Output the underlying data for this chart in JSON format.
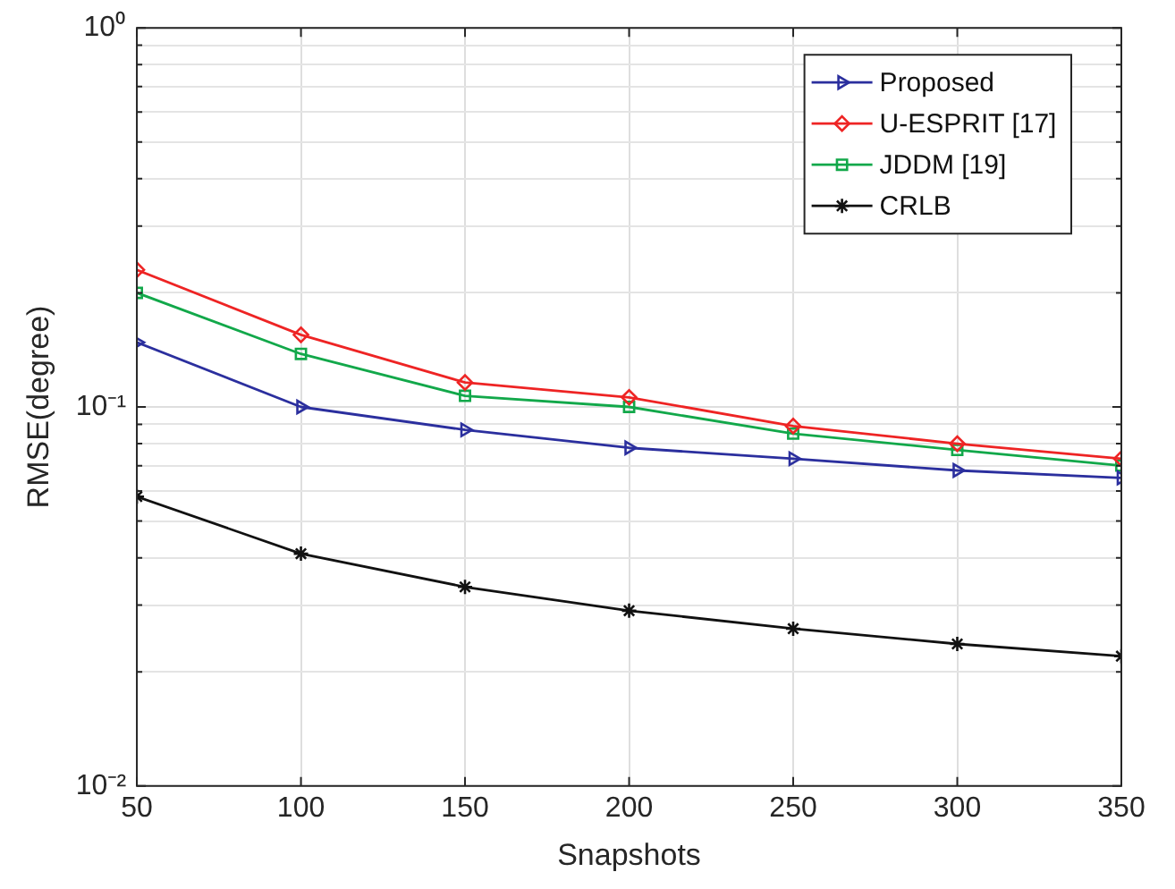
{
  "chart_data": {
    "type": "line",
    "xlabel": "Snapshots",
    "ylabel": "RMSE(degree)",
    "x": [
      50,
      100,
      150,
      200,
      250,
      300,
      350
    ],
    "xlim": [
      50,
      350
    ],
    "xticks": [
      50,
      100,
      150,
      200,
      250,
      300,
      350
    ],
    "log": "y",
    "ylim": [
      0.01,
      1
    ],
    "yticks": [
      {
        "value": 0.01,
        "label": "10⁻²"
      },
      {
        "value": 0.02,
        "label": null
      },
      {
        "value": 0.03,
        "label": null
      },
      {
        "value": 0.04,
        "label": null
      },
      {
        "value": 0.05,
        "label": null
      },
      {
        "value": 0.06,
        "label": null
      },
      {
        "value": 0.07,
        "label": null
      },
      {
        "value": 0.08,
        "label": null
      },
      {
        "value": 0.09,
        "label": null
      },
      {
        "value": 0.1,
        "label": "10⁻¹"
      },
      {
        "value": 0.2,
        "label": null
      },
      {
        "value": 0.3,
        "label": null
      },
      {
        "value": 0.4,
        "label": null
      },
      {
        "value": 0.5,
        "label": null
      },
      {
        "value": 0.6,
        "label": null
      },
      {
        "value": 0.7,
        "label": null
      },
      {
        "value": 0.8,
        "label": null
      },
      {
        "value": 0.9,
        "label": null
      },
      {
        "value": 1,
        "label": "10⁰"
      }
    ],
    "grid": true,
    "legend": "top right",
    "line_style": "solid",
    "series": [
      {
        "name": "Proposed",
        "color": "#2b2f9e",
        "marker": "triangle",
        "values": [
          0.148,
          0.1,
          0.087,
          0.078,
          0.073,
          0.068,
          0.065
        ]
      },
      {
        "name": "U-ESPRIT [17]",
        "color": "#ee2424",
        "marker": "diamond",
        "values": [
          0.23,
          0.155,
          0.116,
          0.106,
          0.089,
          0.08,
          0.073
        ]
      },
      {
        "name": "JDDM [19]",
        "color": "#12a84a",
        "marker": "square",
        "values": [
          0.2,
          0.138,
          0.107,
          0.1,
          0.085,
          0.077,
          0.07
        ]
      },
      {
        "name": "CRLB",
        "color": "#111111",
        "marker": "cross",
        "values": [
          0.058,
          0.041,
          0.0335,
          0.029,
          0.026,
          0.0237,
          0.022
        ]
      }
    ]
  }
}
